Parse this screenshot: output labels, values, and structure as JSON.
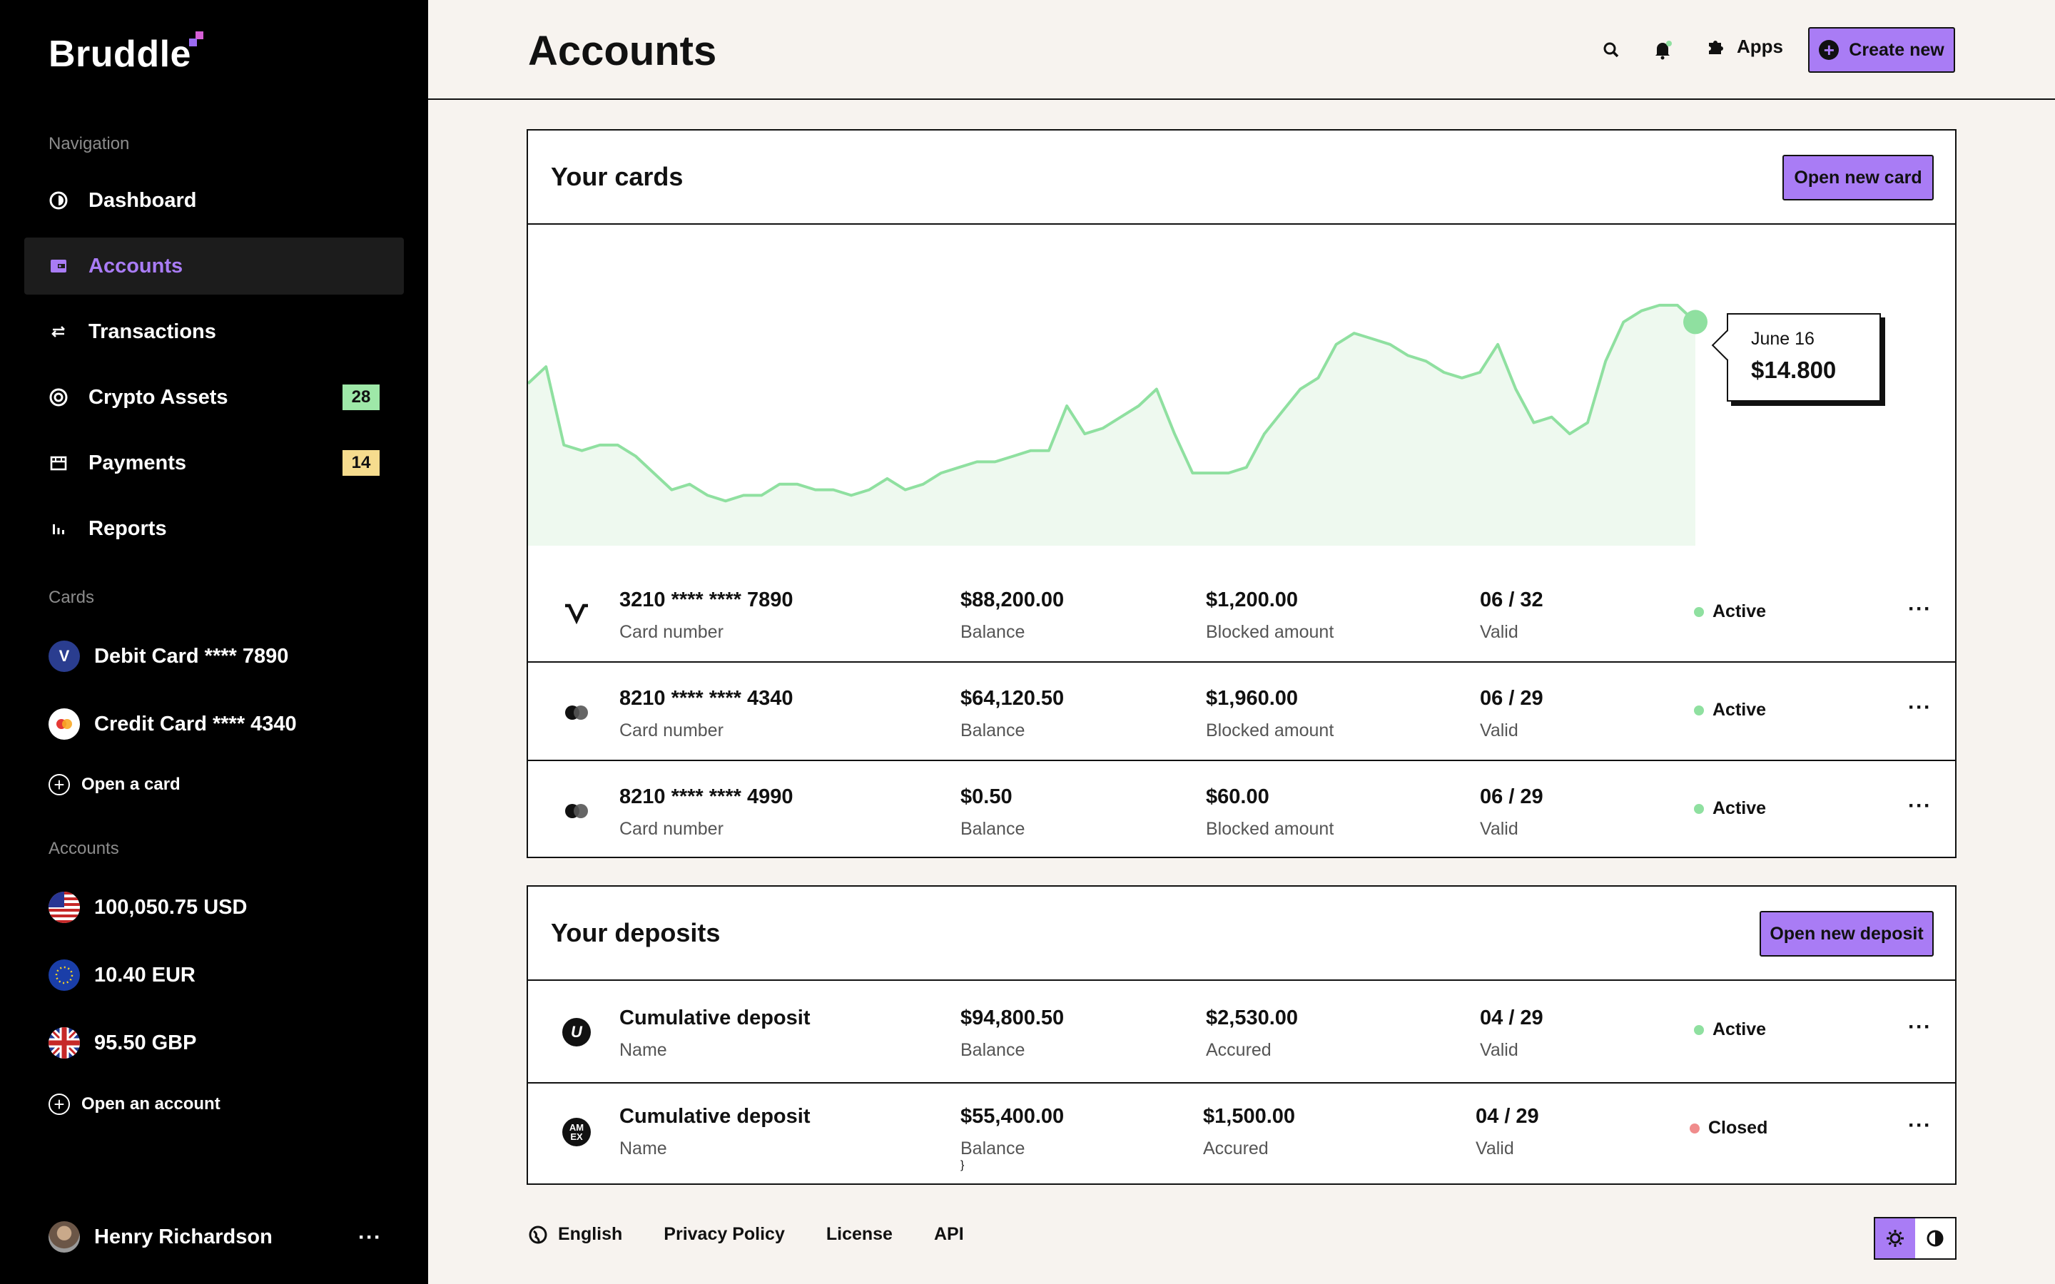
{
  "app": {
    "name": "Bruddle"
  },
  "sidebar": {
    "nav_label": "Navigation",
    "nav_items": [
      {
        "label": "Dashboard",
        "icon": "dashboard-icon"
      },
      {
        "label": "Accounts",
        "icon": "wallet-icon",
        "active": true
      },
      {
        "label": "Transactions",
        "icon": "arrows-swap-icon"
      },
      {
        "label": "Crypto Assets",
        "icon": "crypto-icon",
        "badge": "28"
      },
      {
        "label": "Payments",
        "icon": "store-icon",
        "badge": "14"
      },
      {
        "label": "Reports",
        "icon": "bar-chart-icon"
      }
    ],
    "cards_label": "Cards",
    "cards": [
      {
        "label": "Debit Card **** 7890",
        "icon": "visa-icon"
      },
      {
        "label": "Credit Card **** 4340",
        "icon": "mastercard-icon"
      }
    ],
    "open_card": "Open a card",
    "accounts_label": "Accounts",
    "accounts": [
      {
        "label": "100,050.75 USD",
        "icon": "us-flag-icon"
      },
      {
        "label": "10.40 EUR",
        "icon": "eu-flag-icon"
      },
      {
        "label": "95.50 GBP",
        "icon": "uk-flag-icon"
      }
    ],
    "open_account": "Open an account",
    "user": {
      "name": "Henry Richardson",
      "more": "···"
    }
  },
  "header": {
    "title": "Accounts",
    "apps_label": "Apps",
    "create_label": "Create new",
    "create_icon": "+"
  },
  "cards_panel": {
    "title": "Your cards",
    "button": "Open new card",
    "chart_data": {
      "type": "area",
      "values": [
        49,
        52,
        38,
        37,
        38,
        38,
        36,
        33,
        30,
        31,
        29,
        28,
        29,
        29,
        31,
        31,
        30,
        30,
        29,
        30,
        32,
        30,
        31,
        33,
        34,
        35,
        35,
        36,
        37,
        37,
        45,
        40,
        41,
        43,
        45,
        48,
        40,
        33,
        33,
        33,
        34,
        40,
        44,
        48,
        50,
        56,
        58,
        57,
        56,
        54,
        53,
        51,
        50,
        51,
        56,
        48,
        42,
        43,
        40,
        42,
        53,
        60,
        62,
        63,
        63,
        60
      ],
      "color": "#8fe0a0",
      "fill": "#eef9ef",
      "highlight": {
        "date": "June 16",
        "value": "$14.800"
      }
    },
    "rows": [
      {
        "logo": "visa-logo-icon",
        "number": "3210 **** **** 7890",
        "number_label": "Card number",
        "balance": "$88,200.00",
        "balance_label": "Balance",
        "blocked": "$1,200.00",
        "blocked_label": "Blocked amount",
        "valid": "06 / 32",
        "valid_label": "Valid",
        "status": "Active"
      },
      {
        "logo": "mastercard-logo-icon",
        "number": "8210 **** **** 4340",
        "number_label": "Card number",
        "balance": "$64,120.50",
        "balance_label": "Balance",
        "blocked": "$1,960.00",
        "blocked_label": "Blocked amount",
        "valid": "06 / 29",
        "valid_label": "Valid",
        "status": "Active"
      },
      {
        "logo": "mastercard-logo-icon",
        "number": "8210 **** **** 4990",
        "number_label": "Card number",
        "balance": "$0.50",
        "balance_label": "Balance",
        "blocked": "$60.00",
        "blocked_label": "Blocked amount",
        "valid": "06 / 29",
        "valid_label": "Valid",
        "status": "Active"
      }
    ]
  },
  "deposits_panel": {
    "title": "Your deposits",
    "button": "Open new deposit",
    "rows": [
      {
        "logo": "unionpay-icon",
        "logo_text": "U",
        "name": "Cumulative deposit",
        "name_label": "Name",
        "balance": "$94,800.50",
        "balance_label": "Balance",
        "accrued": "$2,530.00",
        "accrued_label": "Accured",
        "valid": "04 / 29",
        "valid_label": "Valid",
        "status": "Active"
      },
      {
        "logo": "amex-icon",
        "logo_text": "AM EX",
        "name": "Cumulative deposit",
        "name_label": "Name",
        "balance": "$55,400.00",
        "balance_label": "Balance",
        "accrued": "$1,500.00",
        "accrued_label": "Accured",
        "valid": "04 / 29",
        "valid_label": "Valid",
        "status": "Closed"
      }
    ]
  },
  "status_colors": {
    "Active": "#8fe0a0",
    "Closed": "#f08c8c"
  },
  "footer": {
    "language": "English",
    "links": [
      "Privacy Policy",
      "License",
      "API"
    ]
  }
}
